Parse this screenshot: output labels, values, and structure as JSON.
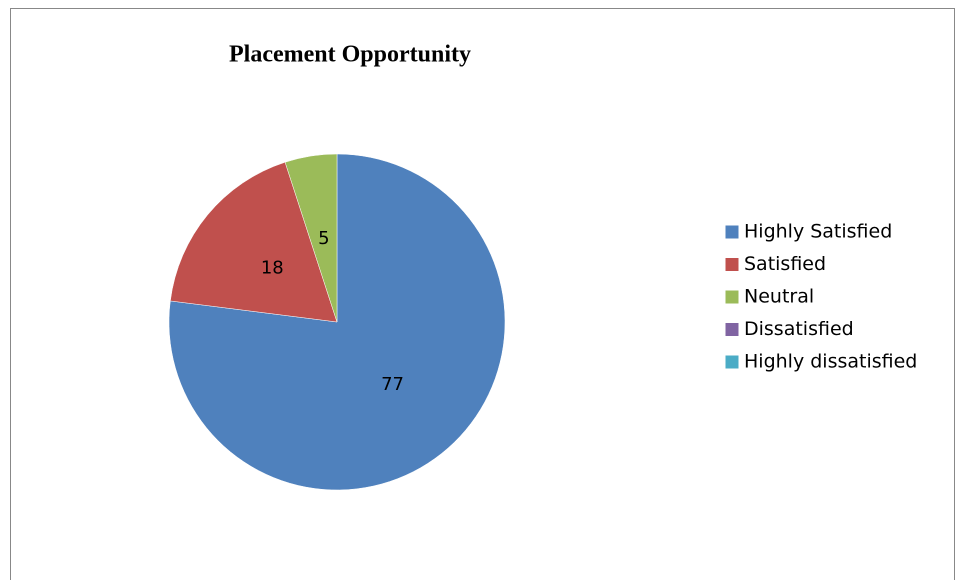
{
  "chart_data": {
    "type": "pie",
    "title": "Placement Opportunity",
    "categories": [
      "Highly Satisfied",
      "Satisfied",
      "Neutral",
      "Dissatisfied",
      "Highly dissatisfied"
    ],
    "values": [
      77,
      18,
      5,
      0,
      0
    ],
    "colors": [
      "#4f81bd",
      "#c0504d",
      "#9bbb59",
      "#8064a2",
      "#4bacc6"
    ],
    "legend": "right"
  }
}
